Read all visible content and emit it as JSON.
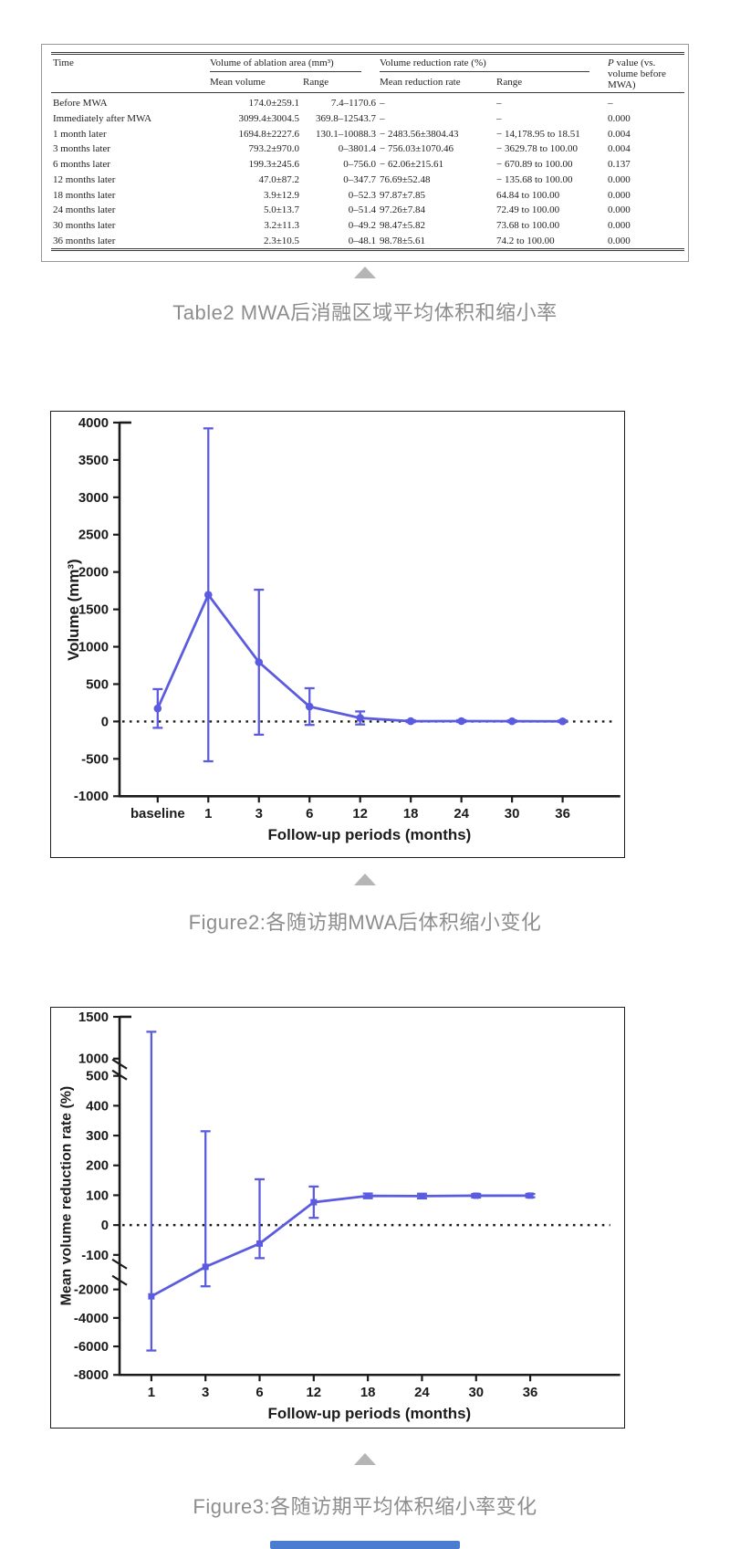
{
  "accent_color": "#5b5be0",
  "table": {
    "title": "Table2 MWA后消融区域平均体积和缩小率",
    "col_time": "Time",
    "group1": "Volume of ablation area (mm³)",
    "group2": "Volume reduction rate (%)",
    "p_italic": "P",
    "p_rest": " value (vs. volume before MWA)",
    "sub_mean_volume": "Mean volume",
    "sub_range1": "Range",
    "sub_mean_rate": "Mean reduction rate",
    "sub_range2": "Range",
    "rows": [
      [
        "Before MWA",
        "174.0±259.1",
        "7.4–1170.6",
        "–",
        "–",
        "–"
      ],
      [
        "Immediately after MWA",
        "3099.4±3004.5",
        "369.8–12543.7",
        "–",
        "–",
        "0.000"
      ],
      [
        "1 month later",
        "1694.8±2227.6",
        "130.1–10088.3",
        "− 2483.56±3804.43",
        "− 14,178.95 to 18.51",
        "0.004"
      ],
      [
        "3 months later",
        "793.2±970.0",
        "0–3801.4",
        "− 756.03±1070.46",
        "− 3629.78 to 100.00",
        "0.004"
      ],
      [
        "6 months later",
        "199.3±245.6",
        "0–756.0",
        "− 62.06±215.61",
        "− 670.89 to 100.00",
        "0.137"
      ],
      [
        "12 months later",
        "47.0±87.2",
        "0–347.7",
        "76.69±52.48",
        "− 135.68 to 100.00",
        "0.000"
      ],
      [
        "18 months later",
        "3.9±12.9",
        "0–52.3",
        "97.87±7.85",
        "64.84 to 100.00",
        "0.000"
      ],
      [
        "24 months later",
        "5.0±13.7",
        "0–51.4",
        "97.26±7.84",
        "72.49 to 100.00",
        "0.000"
      ],
      [
        "30 months later",
        "3.2±11.3",
        "0–49.2",
        "98.47±5.82",
        "73.68 to 100.00",
        "0.000"
      ],
      [
        "36 months later",
        "2.3±10.5",
        "0–48.1",
        "98.78±5.61",
        "74.2 to 100.00",
        "0.000"
      ]
    ]
  },
  "figure2": {
    "caption": "Figure2:各随访期MWA后体积缩小变化"
  },
  "figure3": {
    "caption": "Figure3:各随访期平均体积缩小率变化"
  },
  "chart_data": [
    {
      "id": "figure2",
      "type": "line",
      "title": "",
      "categories": [
        "baseline",
        "1",
        "3",
        "6",
        "12",
        "18",
        "24",
        "30",
        "36"
      ],
      "series": [
        {
          "name": "Mean volume",
          "values": [
            174.0,
            1694.8,
            793.2,
            199.3,
            47.0,
            3.9,
            5.0,
            3.2,
            2.3
          ],
          "errors": [
            259.1,
            2227.6,
            970.0,
            245.6,
            87.2,
            12.9,
            13.7,
            11.3,
            10.5
          ]
        }
      ],
      "xlabel": "Follow-up periods (months)",
      "ylabel": "Volume (mm³)",
      "ylim": [
        -1000,
        4000
      ],
      "yticks": [
        4000,
        3500,
        3000,
        2500,
        2000,
        1500,
        1000,
        500,
        0,
        -500,
        -1000
      ],
      "zero_line": "dotted",
      "grid": false,
      "legend": "none",
      "line_color": "#5b5be0",
      "marker": "circle"
    },
    {
      "id": "figure3",
      "type": "line",
      "title": "",
      "categories": [
        "1",
        "3",
        "6",
        "12",
        "18",
        "24",
        "30",
        "36"
      ],
      "series": [
        {
          "name": "Mean volume reduction rate",
          "values": [
            -2483.56,
            -756.03,
            -62.06,
            76.69,
            97.87,
            97.26,
            98.47,
            98.78
          ],
          "errors": [
            3804.43,
            1070.46,
            215.61,
            52.48,
            7.85,
            7.84,
            5.82,
            5.61
          ]
        }
      ],
      "xlabel": "Follow-up periods (months)",
      "ylabel": "Mean volume reduction rate (%)",
      "ylim": [
        -8000,
        1500
      ],
      "yticks_segments": [
        [
          1500,
          1000
        ],
        [
          500,
          400,
          300,
          200,
          100,
          0,
          -100
        ],
        [
          -2000,
          -4000,
          -6000,
          -8000
        ]
      ],
      "axis_breaks": [
        [
          1000,
          500
        ],
        [
          -100,
          -2000
        ]
      ],
      "zero_line": "dotted",
      "grid": false,
      "legend": "none",
      "line_color": "#5b5be0",
      "marker": "square"
    }
  ]
}
